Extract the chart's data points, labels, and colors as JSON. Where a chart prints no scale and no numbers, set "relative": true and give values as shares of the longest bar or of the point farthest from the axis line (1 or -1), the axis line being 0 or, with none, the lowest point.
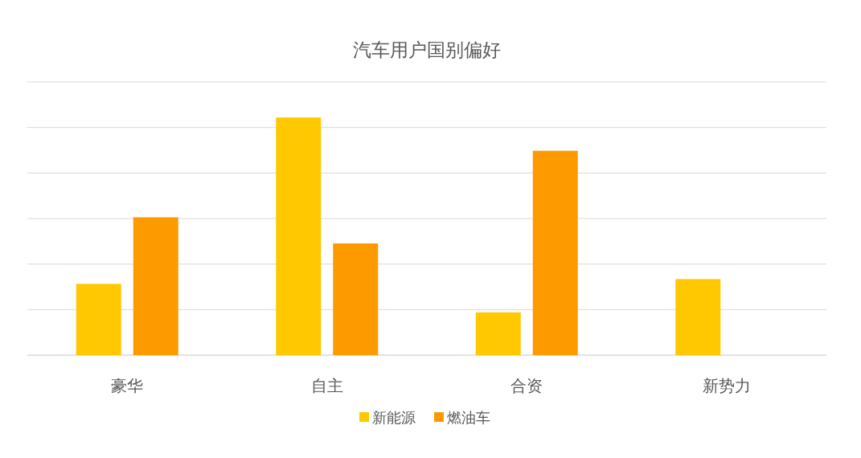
{
  "chart_data": {
    "type": "bar",
    "title": "汽车用户国别偏好",
    "categories": [
      "豪华",
      "自主",
      "合资",
      "新势力"
    ],
    "relative": true,
    "grid": "y",
    "legend": "bottom",
    "series": [
      {
        "name": "新能源",
        "color": "#ffc800",
        "values": [
          0.3,
          1,
          0.18,
          0.32
        ]
      },
      {
        "name": "燃油车",
        "color": "#fd9a00",
        "values": [
          0.58,
          0.47,
          0.86,
          null
        ]
      }
    ]
  }
}
